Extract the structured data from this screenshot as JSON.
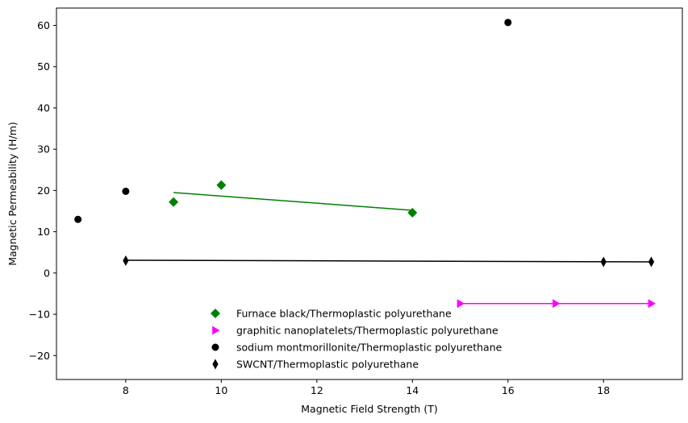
{
  "chart_data": {
    "type": "scatter",
    "title": "",
    "xlabel": "Magnetic Field Strength (T)",
    "ylabel": "Magnetic Permeability (H/m)",
    "xlim": [
      6.55,
      19.65
    ],
    "ylim": [
      -25.8,
      64.2
    ],
    "xticks": [
      8,
      10,
      12,
      14,
      16,
      18
    ],
    "xtick_labels": [
      "8",
      "10",
      "12",
      "14",
      "16",
      "18"
    ],
    "yticks": [
      -20,
      -10,
      0,
      10,
      20,
      30,
      40,
      50,
      60
    ],
    "ytick_labels": [
      "−20",
      "−10",
      "0",
      "10",
      "20",
      "30",
      "40",
      "50",
      "60"
    ],
    "grid": false,
    "legend_position": "bottom-center",
    "series": [
      {
        "name": "Furnace black/Thermoplastic polyurethane",
        "marker": "diamond",
        "color": "#008000",
        "x": [
          9,
          10,
          14
        ],
        "y": [
          17.2,
          21.3,
          14.6
        ],
        "fit_line": {
          "x": [
            9,
            14
          ],
          "y": [
            19.5,
            15.2
          ]
        }
      },
      {
        "name": "graphitic nanoplatelets/Thermoplastic polyurethane",
        "marker": "triangle-right",
        "color": "#ff00ff",
        "x": [
          15,
          17,
          19
        ],
        "y": [
          -7.4,
          -7.4,
          -7.4
        ],
        "fit_line": {
          "x": [
            15,
            19
          ],
          "y": [
            -7.4,
            -7.4
          ]
        }
      },
      {
        "name": "sodium montmorillonite/Thermoplastic polyurethane",
        "marker": "circle",
        "color": "#000000",
        "x": [
          7,
          8,
          16
        ],
        "y": [
          13.0,
          19.8,
          60.7
        ]
      },
      {
        "name": "SWCNT/Thermoplastic polyurethane",
        "marker": "thin-diamond",
        "color": "#000000",
        "x": [
          8,
          18,
          19
        ],
        "y": [
          3.0,
          2.7,
          2.7
        ],
        "fit_line": {
          "x": [
            8,
            19
          ],
          "y": [
            3.1,
            2.7
          ]
        }
      }
    ]
  }
}
